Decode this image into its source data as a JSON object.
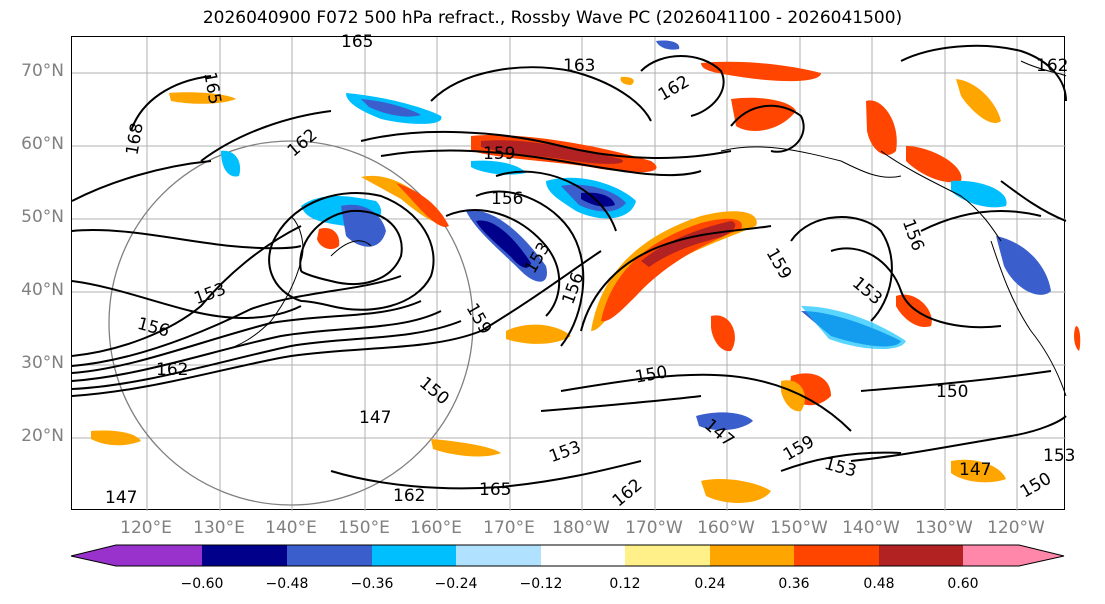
{
  "title": "2026040900 F072 500 hPa refract., Rossby Wave PC (2026041100 - 2026041500)",
  "map": {
    "lat_labels": [
      "70°N",
      "60°N",
      "50°N",
      "40°N",
      "30°N",
      "20°N"
    ],
    "lon_labels": [
      "120°E",
      "130°E",
      "140°E",
      "150°E",
      "160°E",
      "170°E",
      "180°W",
      "170°W",
      "160°W",
      "150°W",
      "140°W",
      "130°W",
      "120°W"
    ],
    "contour_labels": [
      "165",
      "165",
      "168",
      "163",
      "162",
      "162",
      "162",
      "159",
      "156",
      "153",
      "156",
      "159",
      "153",
      "156",
      "159",
      "156",
      "153",
      "150",
      "150",
      "147",
      "150",
      "147",
      "153",
      "162",
      "165",
      "162",
      "159",
      "153",
      "147",
      "150",
      "153",
      "147",
      "162"
    ]
  },
  "colorbar": {
    "colors": [
      "#9932cc",
      "#00008b",
      "#3a5fcd",
      "#00bfff",
      "#b0e2ff",
      "#ffffff",
      "#fff08a",
      "#ffa500",
      "#ff4500",
      "#b22222",
      "#ff88aa"
    ],
    "tick_labels": [
      "−0.60",
      "−0.48",
      "−0.36",
      "−0.24",
      "−0.12",
      "0.12",
      "0.24",
      "0.36",
      "0.48",
      "0.60"
    ]
  }
}
